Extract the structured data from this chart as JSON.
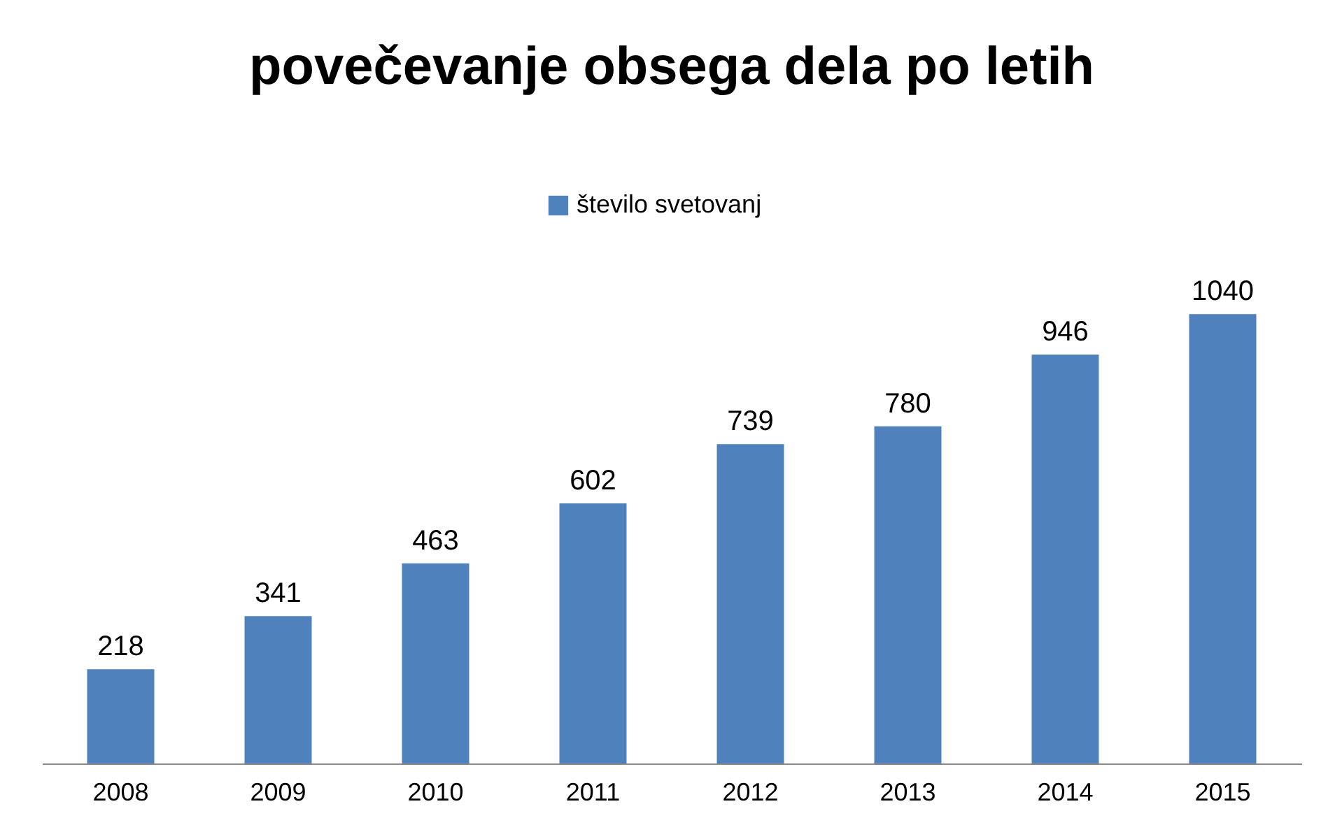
{
  "chart_data": {
    "type": "bar",
    "title": "povečevanje obsega dela po letih",
    "categories": [
      "2008",
      "2009",
      "2010",
      "2011",
      "2012",
      "2013",
      "2014",
      "2015"
    ],
    "series": [
      {
        "name": "število svetovanj",
        "color": "#4f81bd",
        "values": [
          218,
          341,
          463,
          602,
          739,
          780,
          946,
          1040
        ]
      }
    ],
    "data_labels": true,
    "legend": "top",
    "grid": false
  }
}
